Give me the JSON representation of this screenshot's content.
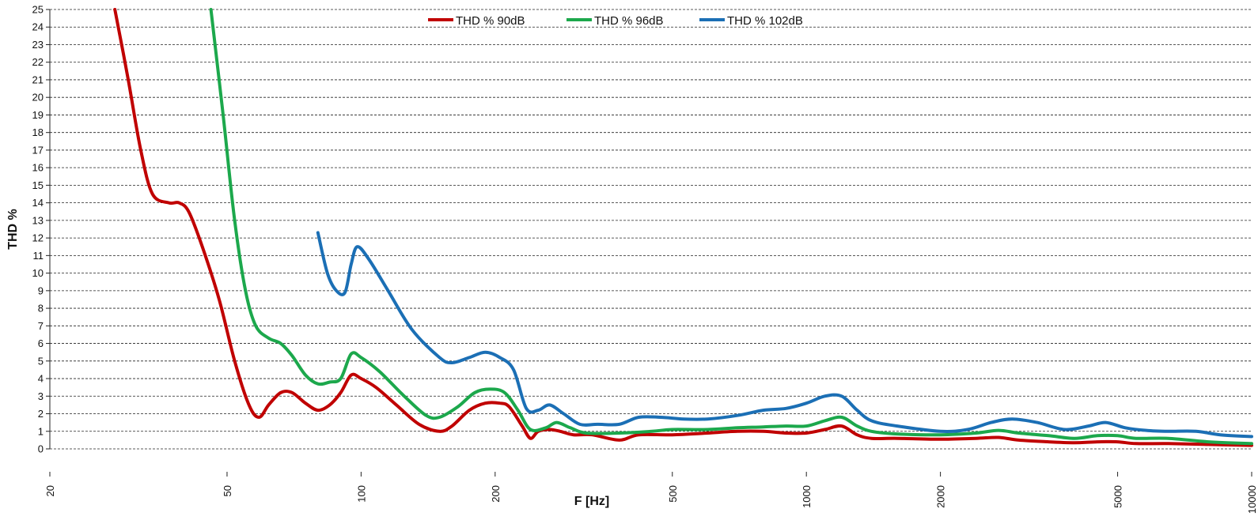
{
  "chart_data": {
    "type": "line",
    "title": "",
    "xlabel": "F [Hz]",
    "ylabel": "THD %",
    "x_scale": "log",
    "xlim": [
      20,
      10000
    ],
    "ylim": [
      0,
      25
    ],
    "grid": "horizontal dashed",
    "legend_position": "top-center",
    "x_ticks": [
      20,
      50,
      100,
      200,
      500,
      1000,
      2000,
      5000,
      10000
    ],
    "x_tick_labels": [
      "20",
      "50",
      "100",
      "200",
      "500",
      "1000",
      "2000",
      "5000",
      "10000"
    ],
    "y_ticks": [
      0,
      1,
      2,
      3,
      4,
      5,
      6,
      7,
      8,
      9,
      10,
      11,
      12,
      13,
      14,
      15,
      16,
      17,
      18,
      19,
      20,
      21,
      22,
      23,
      24,
      25
    ],
    "series": [
      {
        "name": "THD % 90dB",
        "color": "#c00000",
        "points": [
          [
            28,
            25
          ],
          [
            30,
            21
          ],
          [
            32,
            17
          ],
          [
            34,
            14.5
          ],
          [
            37,
            14
          ],
          [
            39,
            14
          ],
          [
            41,
            13.5
          ],
          [
            44,
            11.5
          ],
          [
            48,
            8.5
          ],
          [
            52,
            5
          ],
          [
            56,
            2.5
          ],
          [
            59,
            1.8
          ],
          [
            62,
            2.5
          ],
          [
            66,
            3.2
          ],
          [
            70,
            3.2
          ],
          [
            75,
            2.6
          ],
          [
            80,
            2.2
          ],
          [
            85,
            2.5
          ],
          [
            90,
            3.2
          ],
          [
            95,
            4.2
          ],
          [
            100,
            4
          ],
          [
            108,
            3.5
          ],
          [
            120,
            2.5
          ],
          [
            135,
            1.4
          ],
          [
            150,
            1
          ],
          [
            160,
            1.3
          ],
          [
            175,
            2.2
          ],
          [
            190,
            2.6
          ],
          [
            205,
            2.6
          ],
          [
            215,
            2.4
          ],
          [
            230,
            1.3
          ],
          [
            240,
            0.6
          ],
          [
            250,
            1
          ],
          [
            265,
            1.1
          ],
          [
            280,
            1
          ],
          [
            300,
            0.8
          ],
          [
            330,
            0.8
          ],
          [
            380,
            0.5
          ],
          [
            420,
            0.8
          ],
          [
            500,
            0.8
          ],
          [
            600,
            0.9
          ],
          [
            700,
            1
          ],
          [
            800,
            1
          ],
          [
            900,
            0.9
          ],
          [
            1000,
            0.9
          ],
          [
            1100,
            1.1
          ],
          [
            1200,
            1.3
          ],
          [
            1300,
            0.8
          ],
          [
            1400,
            0.6
          ],
          [
            1600,
            0.6
          ],
          [
            2000,
            0.55
          ],
          [
            2400,
            0.6
          ],
          [
            2700,
            0.65
          ],
          [
            3000,
            0.5
          ],
          [
            3500,
            0.4
          ],
          [
            4000,
            0.35
          ],
          [
            4500,
            0.4
          ],
          [
            5000,
            0.4
          ],
          [
            5500,
            0.3
          ],
          [
            6500,
            0.3
          ],
          [
            8000,
            0.25
          ],
          [
            10000,
            0.2
          ]
        ]
      },
      {
        "name": "THD % 96dB",
        "color": "#1ca84c",
        "points": [
          [
            46,
            25
          ],
          [
            49,
            19
          ],
          [
            52,
            13
          ],
          [
            55,
            9
          ],
          [
            58,
            7
          ],
          [
            62,
            6.3
          ],
          [
            66,
            6
          ],
          [
            70,
            5.3
          ],
          [
            75,
            4.2
          ],
          [
            80,
            3.7
          ],
          [
            85,
            3.8
          ],
          [
            90,
            4
          ],
          [
            95,
            5.4
          ],
          [
            100,
            5.2
          ],
          [
            110,
            4.4
          ],
          [
            125,
            3
          ],
          [
            140,
            1.9
          ],
          [
            150,
            1.8
          ],
          [
            165,
            2.4
          ],
          [
            180,
            3.2
          ],
          [
            195,
            3.4
          ],
          [
            210,
            3.2
          ],
          [
            225,
            2.2
          ],
          [
            240,
            1.1
          ],
          [
            260,
            1.2
          ],
          [
            275,
            1.5
          ],
          [
            295,
            1.2
          ],
          [
            320,
            0.9
          ],
          [
            380,
            0.9
          ],
          [
            450,
            1
          ],
          [
            500,
            1.1
          ],
          [
            600,
            1.1
          ],
          [
            700,
            1.2
          ],
          [
            800,
            1.25
          ],
          [
            900,
            1.3
          ],
          [
            1000,
            1.3
          ],
          [
            1100,
            1.6
          ],
          [
            1200,
            1.8
          ],
          [
            1300,
            1.3
          ],
          [
            1400,
            1
          ],
          [
            1600,
            0.85
          ],
          [
            2000,
            0.8
          ],
          [
            2400,
            0.9
          ],
          [
            2700,
            1.05
          ],
          [
            3000,
            0.9
          ],
          [
            3500,
            0.75
          ],
          [
            4000,
            0.6
          ],
          [
            4500,
            0.75
          ],
          [
            5000,
            0.75
          ],
          [
            5500,
            0.6
          ],
          [
            6500,
            0.6
          ],
          [
            8000,
            0.4
          ],
          [
            10000,
            0.3
          ]
        ]
      },
      {
        "name": "THD % 102dB",
        "color": "#1b6fb5",
        "points": [
          [
            80,
            12.3
          ],
          [
            84,
            10
          ],
          [
            88,
            9
          ],
          [
            92,
            8.9
          ],
          [
            95,
            10.5
          ],
          [
            98,
            11.5
          ],
          [
            104,
            10.8
          ],
          [
            115,
            9
          ],
          [
            130,
            6.8
          ],
          [
            150,
            5.2
          ],
          [
            160,
            4.9
          ],
          [
            175,
            5.2
          ],
          [
            190,
            5.5
          ],
          [
            205,
            5.2
          ],
          [
            220,
            4.5
          ],
          [
            235,
            2.3
          ],
          [
            250,
            2.2
          ],
          [
            265,
            2.5
          ],
          [
            285,
            2
          ],
          [
            310,
            1.4
          ],
          [
            340,
            1.4
          ],
          [
            380,
            1.4
          ],
          [
            420,
            1.8
          ],
          [
            470,
            1.8
          ],
          [
            530,
            1.7
          ],
          [
            600,
            1.7
          ],
          [
            700,
            1.9
          ],
          [
            800,
            2.2
          ],
          [
            900,
            2.3
          ],
          [
            1000,
            2.6
          ],
          [
            1100,
            3
          ],
          [
            1200,
            3
          ],
          [
            1300,
            2.2
          ],
          [
            1400,
            1.6
          ],
          [
            1600,
            1.3
          ],
          [
            2000,
            1
          ],
          [
            2300,
            1.1
          ],
          [
            2600,
            1.5
          ],
          [
            2900,
            1.7
          ],
          [
            3300,
            1.5
          ],
          [
            3800,
            1.1
          ],
          [
            4300,
            1.3
          ],
          [
            4700,
            1.5
          ],
          [
            5200,
            1.2
          ],
          [
            5800,
            1.05
          ],
          [
            6500,
            1
          ],
          [
            7500,
            1
          ],
          [
            8500,
            0.8
          ],
          [
            10000,
            0.7
          ]
        ]
      }
    ]
  }
}
